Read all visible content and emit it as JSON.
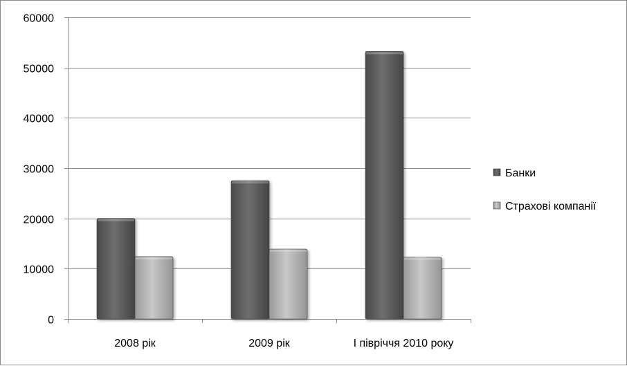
{
  "chart_data": {
    "type": "bar",
    "categories": [
      "2008 рік",
      "2009 рік",
      "І півріччя 2010 року"
    ],
    "series": [
      {
        "name": "Банки",
        "values": [
          20000,
          27500,
          53200
        ],
        "color": "#5e5e5e"
      },
      {
        "name": "Страхові компанії",
        "values": [
          12400,
          13900,
          12300
        ],
        "color": "#b4b4b4"
      }
    ],
    "yticks": [
      "0",
      "10000",
      "20000",
      "30000",
      "40000",
      "50000",
      "60000"
    ],
    "ylim": [
      0,
      60000
    ],
    "grid": true,
    "legend": "right"
  }
}
